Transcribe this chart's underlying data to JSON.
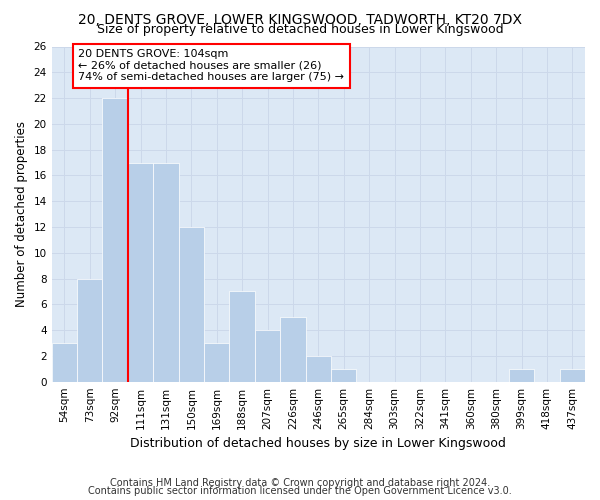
{
  "title1": "20, DENTS GROVE, LOWER KINGSWOOD, TADWORTH, KT20 7DX",
  "title2": "Size of property relative to detached houses in Lower Kingswood",
  "xlabel": "Distribution of detached houses by size in Lower Kingswood",
  "ylabel": "Number of detached properties",
  "footnote1": "Contains HM Land Registry data © Crown copyright and database right 2024.",
  "footnote2": "Contains public sector information licensed under the Open Government Licence v3.0.",
  "categories": [
    "54sqm",
    "73sqm",
    "92sqm",
    "111sqm",
    "131sqm",
    "150sqm",
    "169sqm",
    "188sqm",
    "207sqm",
    "226sqm",
    "246sqm",
    "265sqm",
    "284sqm",
    "303sqm",
    "322sqm",
    "341sqm",
    "360sqm",
    "380sqm",
    "399sqm",
    "418sqm",
    "437sqm"
  ],
  "values": [
    3,
    8,
    22,
    17,
    17,
    12,
    3,
    7,
    4,
    5,
    2,
    1,
    0,
    0,
    0,
    0,
    0,
    0,
    1,
    0,
    1
  ],
  "bar_color": "#b8cfe8",
  "vline_color": "red",
  "vline_x_index": 2.5,
  "annotation_text": "20 DENTS GROVE: 104sqm\n← 26% of detached houses are smaller (26)\n74% of semi-detached houses are larger (75) →",
  "ylim": [
    0,
    26
  ],
  "yticks": [
    0,
    2,
    4,
    6,
    8,
    10,
    12,
    14,
    16,
    18,
    20,
    22,
    24,
    26
  ],
  "grid_color": "#ccd8ea",
  "background_color": "#dce8f5",
  "title1_fontsize": 10,
  "title2_fontsize": 9,
  "xlabel_fontsize": 9,
  "ylabel_fontsize": 8.5,
  "tick_fontsize": 7.5,
  "annotation_fontsize": 8,
  "footnote_fontsize": 7
}
